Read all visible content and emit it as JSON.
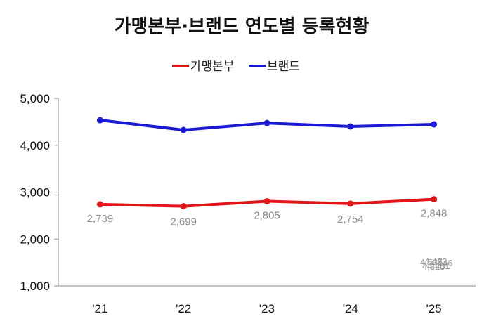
{
  "chart_data": {
    "type": "line",
    "title": "가맹본부·브랜드 연도별 등록현황",
    "categories": [
      "'21",
      "'22",
      "'23",
      "'24",
      "'25"
    ],
    "yticks": [
      "1,000",
      "2,000",
      "3,000",
      "4,000",
      "5,000"
    ],
    "ylim": [
      1000,
      5000
    ],
    "grid": false,
    "legend_position": "top-center",
    "series": [
      {
        "name": "가맹본부",
        "color": "#e0161b",
        "values": [
          2739,
          2699,
          2805,
          2754,
          2848
        ],
        "labels": [
          "2,739",
          "2,699",
          "2,805",
          "2,754",
          "2,848"
        ]
      },
      {
        "name": "브랜드",
        "color": "#1a1ad6",
        "values": [
          4535,
          4325,
          4473,
          4401,
          4446
        ],
        "labels": []
      }
    ],
    "stray_labels": [
      "4,535",
      "4,473",
      "4,446",
      "4,325",
      "4,401"
    ]
  }
}
